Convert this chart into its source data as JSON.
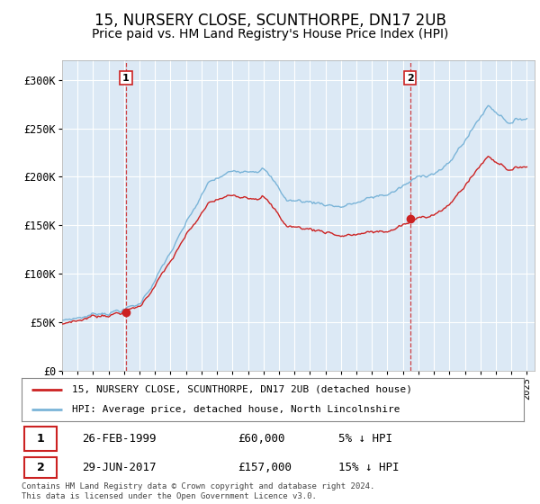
{
  "title": "15, NURSERY CLOSE, SCUNTHORPE, DN17 2UB",
  "subtitle": "Price paid vs. HM Land Registry's House Price Index (HPI)",
  "title_fontsize": 12,
  "subtitle_fontsize": 10,
  "sale1_year": 1999.125,
  "sale1_price": 60000,
  "sale2_year": 2017.458,
  "sale2_price": 157000,
  "legend_label1": "15, NURSERY CLOSE, SCUNTHORPE, DN17 2UB (detached house)",
  "legend_label2": "HPI: Average price, detached house, North Lincolnshire",
  "footer": "Contains HM Land Registry data © Crown copyright and database right 2024.\nThis data is licensed under the Open Government Licence v3.0.",
  "hpi_color": "#7ab4d8",
  "price_color": "#cc2222",
  "vline_color": "#cc2222",
  "box_color": "#cc2222",
  "ylim": [
    0,
    320000
  ],
  "yticks": [
    0,
    50000,
    100000,
    150000,
    200000,
    250000,
    300000
  ],
  "ytick_labels": [
    "£0",
    "£50K",
    "£100K",
    "£150K",
    "£200K",
    "£250K",
    "£300K"
  ],
  "background_color": "#ffffff",
  "chart_bg_color": "#dce9f5",
  "grid_color": "#ffffff"
}
